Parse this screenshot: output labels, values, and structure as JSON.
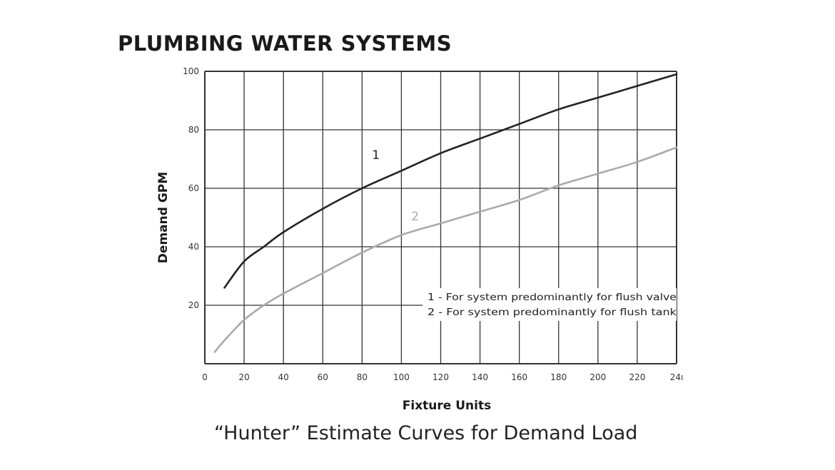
{
  "header": {
    "title": "PLUMBING WATER SYSTEMS"
  },
  "caption": "“Hunter” Estimate Curves for Demand Load",
  "colors": {
    "series1": "#222222",
    "series2": "#aaaaaa",
    "grid": "#333333"
  },
  "chart_data": {
    "type": "line",
    "xlabel": "Fixture Units",
    "ylabel": "Demand GPM",
    "xlim": [
      0,
      240
    ],
    "ylim": [
      0,
      100
    ],
    "x_ticks": [
      "0",
      "20",
      "40",
      "60",
      "80",
      "100",
      "120",
      "140",
      "160",
      "180",
      "200",
      "220",
      "24ı"
    ],
    "y_ticks": [
      "20",
      "40",
      "60",
      "80",
      "100"
    ],
    "grid": true,
    "legend_position": "lower-right",
    "legend": [
      "1 - For system predominantly for flush valve",
      "2 - For system predominantly for flush tank"
    ],
    "series": [
      {
        "name": "1",
        "x": [
          10,
          20,
          30,
          40,
          60,
          80,
          100,
          120,
          140,
          160,
          180,
          200,
          220,
          240
        ],
        "y": [
          26,
          35,
          40,
          45,
          53,
          60,
          66,
          72,
          77,
          82,
          87,
          91,
          95,
          99
        ]
      },
      {
        "name": "2",
        "x": [
          5,
          10,
          20,
          30,
          40,
          60,
          80,
          100,
          120,
          140,
          160,
          180,
          200,
          220,
          240
        ],
        "y": [
          4,
          8,
          15,
          20,
          24,
          31,
          38,
          44,
          48,
          52,
          56,
          61,
          65,
          69,
          74
        ]
      }
    ],
    "annotations": [
      {
        "text": "1",
        "x": 87,
        "y": 70
      },
      {
        "text": "2",
        "x": 107,
        "y": 49
      }
    ]
  }
}
